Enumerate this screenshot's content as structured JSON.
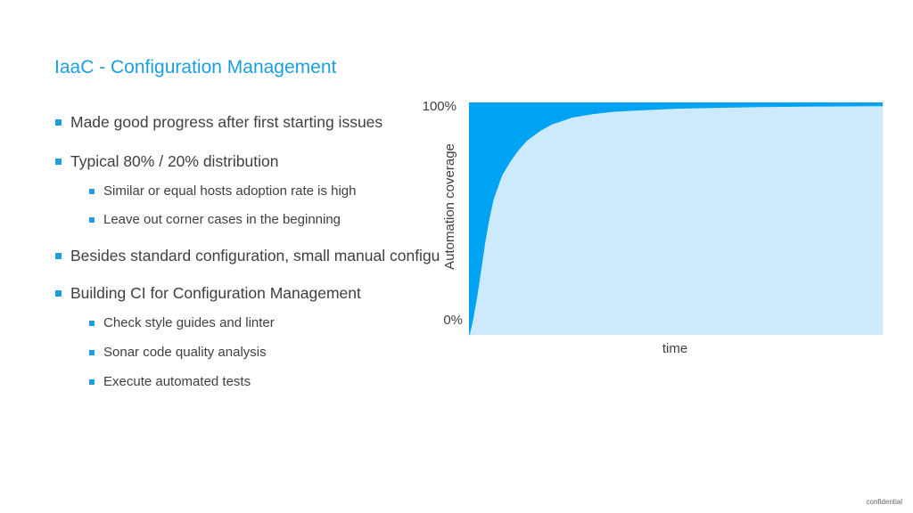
{
  "slide": {
    "title": "IaaC - Configuration Management",
    "footer": "confidential"
  },
  "bullets": [
    {
      "level": 1,
      "text": "Made good progress after first starting issues"
    },
    {
      "level": 1,
      "text": "Typical 80% / 20% distribution"
    },
    {
      "level": 2,
      "text": "Similar or equal hosts adoption rate is high"
    },
    {
      "level": 2,
      "text": "Leave out corner cases in the beginning"
    },
    {
      "level": 1,
      "text": "Besides standard configuration, small manual configu"
    },
    {
      "level": 1,
      "text": "Building CI for Configuration Management"
    },
    {
      "level": 2,
      "text": "Check style guides and linter"
    },
    {
      "level": 2,
      "text": "Sonar code quality analysis"
    },
    {
      "level": 2,
      "text": "Execute automated tests"
    }
  ],
  "chart_data": {
    "type": "area",
    "xlabel": "time",
    "ylabel": "Automation coverage",
    "ytick_labels": [
      "100%",
      "0%"
    ],
    "ylim": [
      0,
      100
    ],
    "xlim": [
      0,
      100
    ],
    "grid": false,
    "series": [
      {
        "values_x": [
          0,
          1,
          2,
          3,
          4,
          5,
          6,
          8,
          10,
          12,
          14,
          17,
          20,
          25,
          30,
          35,
          40,
          50,
          60,
          70,
          80,
          90,
          100
        ],
        "values_y": [
          0,
          8,
          18,
          30,
          42,
          52,
          60,
          70,
          76,
          81,
          85,
          89,
          92,
          95,
          96.5,
          97.5,
          98,
          98.8,
          99.2,
          99.5,
          99.7,
          99.8,
          99.9
        ],
        "color": "#cdeafc"
      }
    ],
    "background_color": "#00a2f2"
  }
}
